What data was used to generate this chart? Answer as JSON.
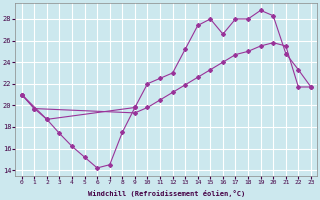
{
  "xlabel": "Windchill (Refroidissement éolien,°C)",
  "background_color": "#cce8ee",
  "grid_color": "#ffffff",
  "line_color": "#993399",
  "xlim": [
    -0.5,
    23.5
  ],
  "ylim": [
    13.5,
    29.5
  ],
  "yticks": [
    14,
    16,
    18,
    20,
    22,
    24,
    26,
    28
  ],
  "xticks": [
    0,
    1,
    2,
    3,
    4,
    5,
    6,
    7,
    8,
    9,
    10,
    11,
    12,
    13,
    14,
    15,
    16,
    17,
    18,
    19,
    20,
    21,
    22,
    23
  ],
  "series1_x": [
    0,
    1,
    2,
    3,
    4,
    5,
    6,
    7,
    8,
    9
  ],
  "series1_y": [
    21.0,
    19.7,
    18.7,
    17.4,
    16.2,
    15.2,
    14.2,
    14.5,
    17.5,
    19.8
  ],
  "series2_x": [
    0,
    2,
    9,
    10,
    11,
    12,
    13,
    14,
    15,
    16,
    17,
    18,
    19,
    20,
    21,
    22,
    23
  ],
  "series2_y": [
    21.0,
    18.7,
    19.8,
    22.0,
    22.5,
    23.0,
    25.2,
    27.4,
    28.0,
    26.6,
    28.0,
    28.0,
    28.8,
    28.3,
    24.8,
    23.3,
    21.7
  ],
  "series3_x": [
    0,
    1,
    9,
    10,
    11,
    12,
    13,
    14,
    15,
    16,
    17,
    18,
    19,
    20,
    21,
    22,
    23
  ],
  "series3_y": [
    21.0,
    19.7,
    19.3,
    19.8,
    20.5,
    21.2,
    21.9,
    22.6,
    23.3,
    24.0,
    24.7,
    25.0,
    25.5,
    25.8,
    25.5,
    21.7,
    21.7
  ]
}
